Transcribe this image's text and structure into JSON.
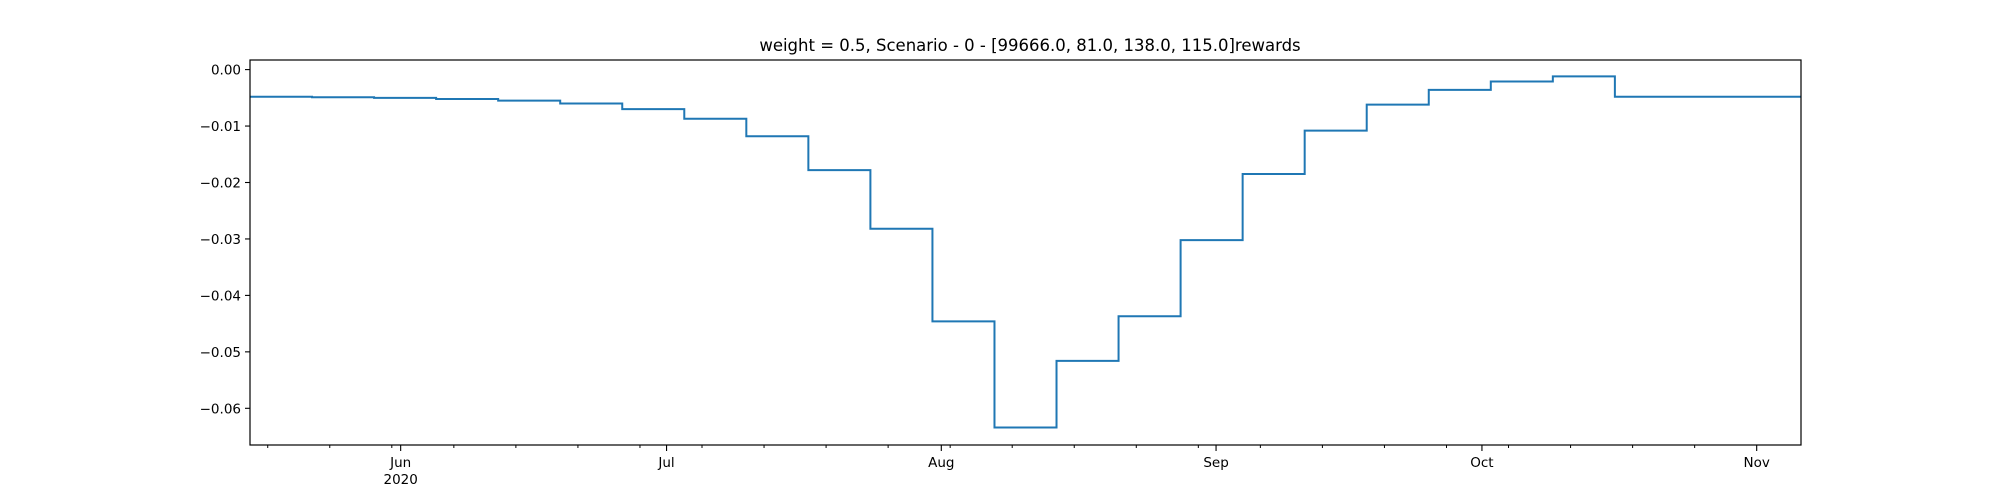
{
  "chart_data": {
    "type": "line",
    "title": "weight = 0.5, Scenario - 0 - [99666.0, 81.0, 138.0, 115.0]rewards",
    "xlabel": "",
    "ylabel": "",
    "step": "post",
    "line_color": "#1f77b4",
    "grid": false,
    "xlim": [
      "2020-05-15",
      "2020-11-06"
    ],
    "ylim": [
      -0.0665,
      0.0017
    ],
    "x_ticks": [
      {
        "date": "2020-06-01",
        "label": "Jun"
      },
      {
        "date": "2020-07-01",
        "label": "Jul"
      },
      {
        "date": "2020-08-01",
        "label": "Aug"
      },
      {
        "date": "2020-09-01",
        "label": "Sep"
      },
      {
        "date": "2020-10-01",
        "label": "Oct"
      },
      {
        "date": "2020-11-01",
        "label": "Nov"
      }
    ],
    "x_year_label": "2020",
    "y_ticks": [
      {
        "value": 0.0,
        "label": "0.00"
      },
      {
        "value": -0.01,
        "label": "−0.01"
      },
      {
        "value": -0.02,
        "label": "−0.02"
      },
      {
        "value": -0.03,
        "label": "−0.03"
      },
      {
        "value": -0.04,
        "label": "−0.04"
      },
      {
        "value": -0.05,
        "label": "−0.05"
      },
      {
        "value": -0.06,
        "label": "−0.06"
      }
    ],
    "series": [
      {
        "x": [
          "2020-05-15",
          "2020-05-22",
          "2020-05-29",
          "2020-06-05",
          "2020-06-12",
          "2020-06-19",
          "2020-06-26",
          "2020-07-03",
          "2020-07-10",
          "2020-07-17",
          "2020-07-24",
          "2020-07-31",
          "2020-08-07",
          "2020-08-14",
          "2020-08-21",
          "2020-08-28",
          "2020-09-04",
          "2020-09-11",
          "2020-09-18",
          "2020-09-25",
          "2020-10-02",
          "2020-10-09",
          "2020-10-16",
          "2020-10-23",
          "2020-10-30",
          "2020-11-06"
        ],
        "values": [
          -0.0048,
          -0.0049,
          -0.005,
          -0.0052,
          -0.0055,
          -0.006,
          -0.007,
          -0.0087,
          -0.0118,
          -0.0178,
          -0.0282,
          -0.0446,
          -0.0634,
          -0.0516,
          -0.0437,
          -0.0302,
          -0.0185,
          -0.0108,
          -0.0062,
          -0.0036,
          -0.0021,
          -0.0012,
          -0.0048,
          -0.0048,
          -0.0048,
          -0.0048
        ]
      }
    ]
  }
}
